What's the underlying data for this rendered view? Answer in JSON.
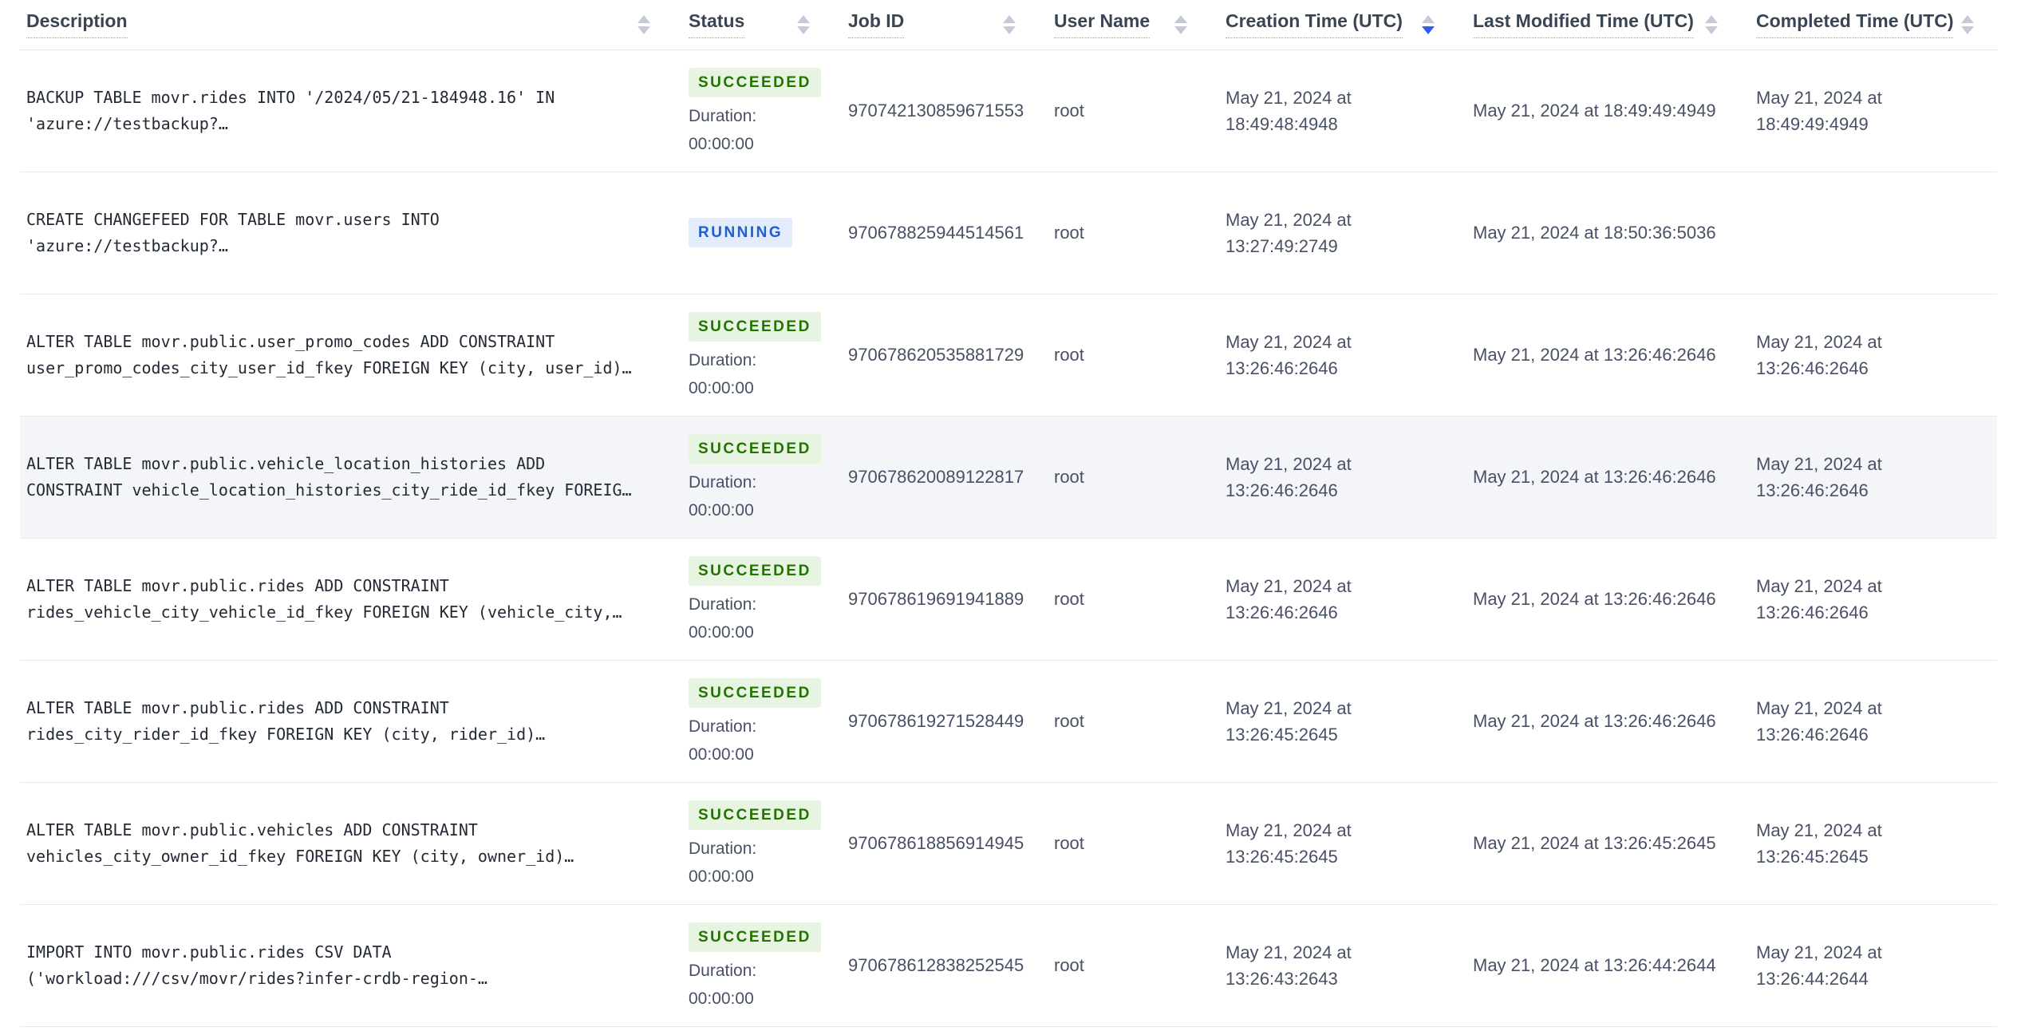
{
  "table": {
    "sort_column_index": 4,
    "columns": [
      {
        "label": "Description",
        "sort": "none"
      },
      {
        "label": "Status",
        "sort": "none"
      },
      {
        "label": "Job ID",
        "sort": "none"
      },
      {
        "label": "User Name",
        "sort": "none"
      },
      {
        "label": "Creation Time (UTC)",
        "sort": "desc"
      },
      {
        "label": "Last Modified Time (UTC)",
        "sort": "none"
      },
      {
        "label": "Completed Time (UTC)",
        "sort": "none"
      }
    ],
    "rows": [
      {
        "description_line1": "BACKUP TABLE movr.rides INTO '/2024/05/21-184948.16' IN",
        "description_line2": "'azure://testbackup?…",
        "status": "SUCCEEDED",
        "duration_label": "Duration:",
        "duration": "00:00:00",
        "job_id": "970742130859671553",
        "user_name": "root",
        "creation_line1": "May 21, 2024 at",
        "creation_line2": "18:49:48:4948",
        "last_modified": "May 21, 2024 at 18:49:49:4949",
        "completed_line1": "May 21, 2024 at",
        "completed_line2": "18:49:49:4949",
        "highlighted": false
      },
      {
        "description_line1": "CREATE CHANGEFEED FOR TABLE movr.users INTO",
        "description_line2": "'azure://testbackup?…",
        "status": "RUNNING",
        "duration_label": "",
        "duration": "",
        "job_id": "970678825944514561",
        "user_name": "root",
        "creation_line1": "May 21, 2024 at",
        "creation_line2": "13:27:49:2749",
        "last_modified": "May 21, 2024 at 18:50:36:5036",
        "completed_line1": "",
        "completed_line2": "",
        "highlighted": false
      },
      {
        "description_line1": "ALTER TABLE movr.public.user_promo_codes ADD CONSTRAINT",
        "description_line2": "user_promo_codes_city_user_id_fkey FOREIGN KEY (city, user_id)…",
        "status": "SUCCEEDED",
        "duration_label": "Duration:",
        "duration": "00:00:00",
        "job_id": "970678620535881729",
        "user_name": "root",
        "creation_line1": "May 21, 2024 at",
        "creation_line2": "13:26:46:2646",
        "last_modified": "May 21, 2024 at 13:26:46:2646",
        "completed_line1": "May 21, 2024 at",
        "completed_line2": "13:26:46:2646",
        "highlighted": false
      },
      {
        "description_line1": "ALTER TABLE movr.public.vehicle_location_histories ADD",
        "description_line2": "CONSTRAINT vehicle_location_histories_city_ride_id_fkey FOREIG…",
        "status": "SUCCEEDED",
        "duration_label": "Duration:",
        "duration": "00:00:00",
        "job_id": "970678620089122817",
        "user_name": "root",
        "creation_line1": "May 21, 2024 at",
        "creation_line2": "13:26:46:2646",
        "last_modified": "May 21, 2024 at 13:26:46:2646",
        "completed_line1": "May 21, 2024 at",
        "completed_line2": "13:26:46:2646",
        "highlighted": true
      },
      {
        "description_line1": "ALTER TABLE movr.public.rides ADD CONSTRAINT",
        "description_line2": "rides_vehicle_city_vehicle_id_fkey FOREIGN KEY (vehicle_city,…",
        "status": "SUCCEEDED",
        "duration_label": "Duration:",
        "duration": "00:00:00",
        "job_id": "970678619691941889",
        "user_name": "root",
        "creation_line1": "May 21, 2024 at",
        "creation_line2": "13:26:46:2646",
        "last_modified": "May 21, 2024 at 13:26:46:2646",
        "completed_line1": "May 21, 2024 at",
        "completed_line2": "13:26:46:2646",
        "highlighted": false
      },
      {
        "description_line1": "ALTER TABLE movr.public.rides ADD CONSTRAINT",
        "description_line2": "rides_city_rider_id_fkey FOREIGN KEY (city, rider_id)…",
        "status": "SUCCEEDED",
        "duration_label": "Duration:",
        "duration": "00:00:00",
        "job_id": "970678619271528449",
        "user_name": "root",
        "creation_line1": "May 21, 2024 at",
        "creation_line2": "13:26:45:2645",
        "last_modified": "May 21, 2024 at 13:26:46:2646",
        "completed_line1": "May 21, 2024 at",
        "completed_line2": "13:26:46:2646",
        "highlighted": false
      },
      {
        "description_line1": "ALTER TABLE movr.public.vehicles ADD CONSTRAINT",
        "description_line2": "vehicles_city_owner_id_fkey FOREIGN KEY (city, owner_id)…",
        "status": "SUCCEEDED",
        "duration_label": "Duration:",
        "duration": "00:00:00",
        "job_id": "970678618856914945",
        "user_name": "root",
        "creation_line1": "May 21, 2024 at",
        "creation_line2": "13:26:45:2645",
        "last_modified": "May 21, 2024 at 13:26:45:2645",
        "completed_line1": "May 21, 2024 at",
        "completed_line2": "13:26:45:2645",
        "highlighted": false
      },
      {
        "description_line1": "IMPORT INTO movr.public.rides CSV DATA",
        "description_line2": "('workload:///csv/movr/rides?infer-crdb-region-…",
        "status": "SUCCEEDED",
        "duration_label": "Duration:",
        "duration": "00:00:00",
        "job_id": "970678612838252545",
        "user_name": "root",
        "creation_line1": "May 21, 2024 at",
        "creation_line2": "13:26:43:2643",
        "last_modified": "May 21, 2024 at 13:26:44:2644",
        "completed_line1": "May 21, 2024 at",
        "completed_line2": "13:26:44:2644",
        "highlighted": false
      }
    ]
  },
  "colors": {
    "header_text": "#394455",
    "body_text": "#475064",
    "description_text": "#242a35",
    "row_border": "#e7eaf0",
    "row_highlight": "#f4f5f8",
    "badge_succeeded_bg": "#e7f4e2",
    "badge_succeeded_text": "#237300",
    "badge_running_bg": "#e2ecfb",
    "badge_running_text": "#1f5ed2",
    "sort_arrow_inactive": "#c4cad9",
    "sort_arrow_active": "#2e5bf0"
  }
}
